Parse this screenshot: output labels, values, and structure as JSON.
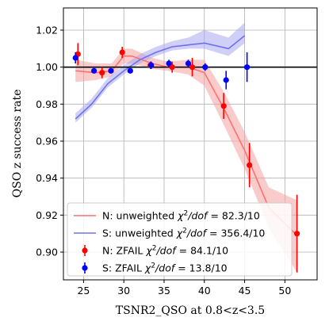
{
  "chart_data": {
    "type": "line",
    "xlabel": "TSNR2_QSO at 0.8<z<3.5",
    "ylabel": "QSO z success rate",
    "xlim": [
      22.5,
      54
    ],
    "ylim": [
      0.885,
      1.032
    ],
    "xticks": [
      25,
      30,
      35,
      40,
      45,
      50
    ],
    "xtick_labels": [
      "25",
      "30",
      "35",
      "40",
      "45",
      "50"
    ],
    "yticks": [
      0.9,
      0.92,
      0.94,
      0.96,
      0.98,
      1.0,
      1.02
    ],
    "ytick_labels": [
      "0.90",
      "0.92",
      "0.94",
      "0.96",
      "0.98",
      "1.00",
      "1.02"
    ],
    "grid": true,
    "reference_line_y": 1.0,
    "legend_position": "lower-left",
    "colors": {
      "N": "#ff0000",
      "S": "#0000ff",
      "N_line": "#ff7070",
      "S_line": "#7070ee",
      "N_band": "#f4a0a0",
      "S_band": "#a8a8f0"
    },
    "series": [
      {
        "name": "N: unweighted χ²/dof = 82.3/10",
        "legend_label": "N: unweighted",
        "legend_stat": "82.3/10",
        "kind": "model_band",
        "x": [
          24,
          26.5,
          28.5,
          30,
          31,
          33.5,
          35.5,
          38,
          40,
          42.5,
          45,
          48,
          51.5
        ],
        "values": [
          0.998,
          0.997,
          0.998,
          1.006,
          1.006,
          1.002,
          1.0,
          1.0,
          0.997,
          0.977,
          0.955,
          0.924,
          0.909
        ],
        "band_low": [
          0.992,
          0.993,
          0.995,
          1.002,
          1.002,
          0.999,
          0.998,
          0.996,
          0.99,
          0.968,
          0.945,
          0.913,
          0.889
        ],
        "band_high": [
          1.004,
          1.002,
          1.002,
          1.01,
          1.01,
          1.005,
          1.003,
          1.004,
          1.004,
          0.986,
          0.965,
          0.935,
          0.928
        ]
      },
      {
        "name": "S: unweighted χ²/dof = 356.4/10",
        "legend_label": "S: unweighted",
        "legend_stat": "356.4/10",
        "kind": "model_band",
        "x": [
          24,
          26,
          28,
          30,
          32,
          34,
          36,
          38,
          40,
          43,
          45
        ],
        "values": [
          0.972,
          0.98,
          0.991,
          0.998,
          1.004,
          1.008,
          1.011,
          1.012,
          1.013,
          1.01,
          1.017
        ],
        "band_low": [
          0.97,
          0.978,
          0.989,
          0.996,
          1.002,
          1.006,
          1.009,
          1.01,
          1.01,
          1.006,
          1.013
        ],
        "band_high": [
          0.975,
          0.983,
          0.994,
          1.001,
          1.007,
          1.011,
          1.014,
          1.016,
          1.02,
          1.016,
          1.024
        ]
      },
      {
        "name": "N: ZFAIL χ²/dof = 84.1/10",
        "legend_label": "N: ZFAIL",
        "legend_stat": "84.1/10",
        "kind": "errorbar",
        "x": [
          24.3,
          27.3,
          29.8,
          33.3,
          36.0,
          38.5,
          42.4,
          45.6,
          51.5
        ],
        "values": [
          1.007,
          0.997,
          1.008,
          1.001,
          1.0,
          1.0,
          0.979,
          0.947,
          0.91
        ],
        "err": [
          0.006,
          0.003,
          0.003,
          0.002,
          0.003,
          0.005,
          0.007,
          0.012,
          0.021
        ]
      },
      {
        "name": "S: ZFAIL χ²/dof = 13.8/10",
        "legend_label": "S: ZFAIL",
        "legend_stat": "13.8/10",
        "kind": "errorbar",
        "x": [
          24.0,
          26.3,
          28.4,
          30.8,
          33.4,
          35.6,
          38.0,
          40.1,
          42.7,
          45.3
        ],
        "values": [
          1.005,
          0.998,
          0.998,
          0.998,
          1.001,
          1.002,
          1.002,
          1.0,
          0.993,
          1.0
        ],
        "err": [
          0.003,
          0.001,
          0.001,
          0.001,
          0.002,
          0.002,
          0.002,
          0.002,
          0.005,
          0.008
        ]
      }
    ]
  }
}
